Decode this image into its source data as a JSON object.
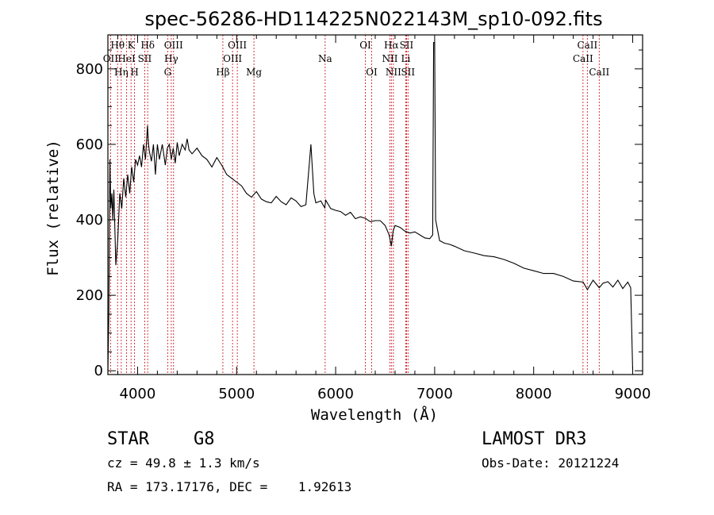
{
  "chart_data": {
    "type": "line",
    "title": "spec-56286-HD114225N022143M_sp10-092.fits",
    "xlabel": "Wavelength (Å)",
    "ylabel": "Flux (relative)",
    "xlim": [
      3700,
      9100
    ],
    "ylim": [
      -10,
      890
    ],
    "xticks": [
      4000,
      5000,
      6000,
      7000,
      8000,
      9000
    ],
    "yticks": [
      0,
      200,
      400,
      600,
      800
    ],
    "grid": false,
    "series": [
      {
        "values_note": "",
        "x": [
          3700,
          3710,
          3720,
          3730,
          3740,
          3750,
          3760,
          3780,
          3800,
          3820,
          3840,
          3860,
          3880,
          3900,
          3920,
          3940,
          3960,
          3980,
          4000,
          4020,
          4040,
          4060,
          4080,
          4100,
          4110,
          4120,
          4140,
          4160,
          4180,
          4200,
          4220,
          4250,
          4280,
          4300,
          4320,
          4340,
          4360,
          4380,
          4400,
          4420,
          4450,
          4480,
          4500,
          4520,
          4550,
          4600,
          4650,
          4700,
          4750,
          4800,
          4850,
          4900,
          4950,
          5000,
          5050,
          5100,
          5150,
          5200,
          5250,
          5300,
          5350,
          5400,
          5450,
          5500,
          5550,
          5600,
          5650,
          5700,
          5750,
          5780,
          5800,
          5850,
          5890,
          5900,
          5950,
          6000,
          6050,
          6100,
          6150,
          6200,
          6250,
          6300,
          6350,
          6400,
          6450,
          6500,
          6540,
          6563,
          6580,
          6600,
          6650,
          6700,
          6750,
          6800,
          6850,
          6900,
          6950,
          6980,
          6990,
          7000,
          7010,
          7050,
          7100,
          7150,
          7200,
          7300,
          7400,
          7500,
          7600,
          7700,
          7800,
          7900,
          8000,
          8100,
          8200,
          8300,
          8400,
          8500,
          8542,
          8600,
          8662,
          8700,
          8750,
          8800,
          8850,
          8900,
          8950,
          8980,
          9000
        ],
        "y": [
          0,
          150,
          560,
          430,
          470,
          400,
          480,
          280,
          350,
          470,
          430,
          510,
          460,
          520,
          470,
          540,
          500,
          560,
          545,
          570,
          540,
          600,
          560,
          650,
          600,
          580,
          555,
          600,
          520,
          600,
          560,
          600,
          545,
          590,
          600,
          560,
          590,
          550,
          605,
          570,
          600,
          585,
          615,
          585,
          575,
          590,
          570,
          560,
          540,
          565,
          545,
          520,
          510,
          500,
          490,
          470,
          460,
          475,
          455,
          448,
          445,
          462,
          448,
          440,
          458,
          450,
          435,
          440,
          600,
          470,
          445,
          450,
          432,
          452,
          430,
          425,
          422,
          412,
          420,
          403,
          408,
          404,
          395,
          398,
          398,
          385,
          360,
          330,
          370,
          385,
          380,
          370,
          365,
          368,
          360,
          352,
          350,
          360,
          870,
          870,
          400,
          345,
          338,
          335,
          330,
          318,
          312,
          305,
          302,
          295,
          285,
          272,
          265,
          258,
          258,
          250,
          238,
          235,
          215,
          240,
          220,
          232,
          236,
          222,
          240,
          218,
          235,
          220,
          0
        ]
      }
    ],
    "line_markers": [
      {
        "label": "Hθ",
        "x": 3798,
        "row": 0
      },
      {
        "label": "OII",
        "x": 3727,
        "row": 1
      },
      {
        "label": "Hη",
        "x": 3835,
        "row": 2
      },
      {
        "label": "K",
        "x": 3934,
        "row": 0
      },
      {
        "label": "HeI",
        "x": 3889,
        "row": 1
      },
      {
        "label": "H",
        "x": 3969,
        "row": 2
      },
      {
        "label": "Hδ",
        "x": 4102,
        "row": 0
      },
      {
        "label": "SII",
        "x": 4072,
        "row": 1
      },
      {
        "label": "OIII",
        "x": 4363,
        "row": 0
      },
      {
        "label": "Hγ",
        "x": 4340,
        "row": 1
      },
      {
        "label": "G",
        "x": 4304,
        "row": 2
      },
      {
        "label": "OIII",
        "x": 5007,
        "row": 0
      },
      {
        "label": "OIII",
        "x": 4959,
        "row": 1
      },
      {
        "label": "Hβ",
        "x": 4861,
        "row": 2
      },
      {
        "label": "Mg",
        "x": 5175,
        "row": 2
      },
      {
        "label": "Na",
        "x": 5894,
        "row": 1
      },
      {
        "label": "OI",
        "x": 6300,
        "row": 0
      },
      {
        "label": "OI",
        "x": 6364,
        "row": 2
      },
      {
        "label": "Hα",
        "x": 6563,
        "row": 0
      },
      {
        "label": "SII",
        "x": 6716,
        "row": 0
      },
      {
        "label": "NII",
        "x": 6548,
        "row": 1
      },
      {
        "label": "Li",
        "x": 6708,
        "row": 1
      },
      {
        "label": "NII",
        "x": 6583,
        "row": 2
      },
      {
        "label": "SII",
        "x": 6731,
        "row": 2
      },
      {
        "label": "CaII",
        "x": 8542,
        "row": 0
      },
      {
        "label": "CaII",
        "x": 8498,
        "row": 1
      },
      {
        "label": "CaII",
        "x": 8662,
        "row": 2
      }
    ]
  },
  "info": {
    "class": "STAR",
    "subclass": "G8",
    "survey": "LAMOST DR3",
    "cz": "cz = 49.8 ± 1.3 km/s",
    "obs_date": "Obs-Date: 20121224",
    "radec": "RA = 173.17176, DEC =    1.92613"
  }
}
